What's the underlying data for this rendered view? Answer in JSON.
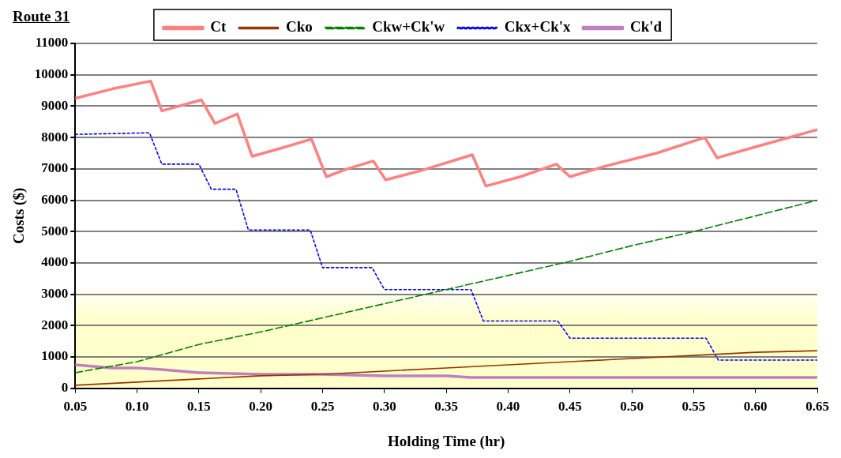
{
  "chart_data": {
    "type": "line",
    "title": "Route 31",
    "xlabel": "Holding Time (hr)",
    "ylabel": "Costs ($)",
    "xlim": [
      0.05,
      0.65
    ],
    "xticks": [
      0.05,
      {
        "value": 0.1,
        "label": "0.10"
      },
      0.15,
      {
        "value": 0.2,
        "label": "0.20"
      },
      0.25,
      {
        "value": 0.3,
        "label": "0.30"
      },
      0.35,
      {
        "value": 0.4,
        "label": "0.40"
      },
      0.45,
      {
        "value": 0.5,
        "label": "0.50"
      },
      0.55,
      {
        "value": 0.6,
        "label": "0.60"
      },
      0.65
    ],
    "ylim": [
      0,
      11000
    ],
    "yticks": [
      0,
      1000,
      2000,
      3000,
      4000,
      5000,
      6000,
      7000,
      8000,
      9000,
      10000,
      11000
    ],
    "grid": "y",
    "legend": "top",
    "marker": "none",
    "series": [
      {
        "name": "Ct",
        "color": "#ff8080",
        "line_style": "solid",
        "x": [
          0.05,
          0.08,
          0.111,
          0.12,
          0.152,
          0.163,
          0.181,
          0.193,
          0.22,
          0.241,
          0.253,
          0.27,
          0.291,
          0.301,
          0.33,
          0.371,
          0.382,
          0.41,
          0.439,
          0.45,
          0.48,
          0.52,
          0.559,
          0.569,
          0.6,
          0.65
        ],
        "values": [
          9250,
          9550,
          9800,
          8850,
          9200,
          8450,
          8750,
          7400,
          7700,
          7950,
          6750,
          7000,
          7250,
          6650,
          6950,
          7450,
          6450,
          6750,
          7150,
          6750,
          7100,
          7500,
          8000,
          7350,
          7700,
          8250
        ]
      },
      {
        "name": "Cko",
        "color": "#993300",
        "line_style": "solid",
        "x": [
          0.05,
          0.1,
          0.15,
          0.2,
          0.25,
          0.3,
          0.35,
          0.4,
          0.45,
          0.5,
          0.55,
          0.6,
          0.65
        ],
        "values": [
          100,
          200,
          300,
          400,
          450,
          550,
          650,
          750,
          850,
          950,
          1050,
          1150,
          1200
        ]
      },
      {
        "name": "Ckw+Ck'w",
        "color": "#008000",
        "line_style": "dashed",
        "x": [
          0.05,
          0.1,
          0.15,
          0.2,
          0.25,
          0.3,
          0.35,
          0.4,
          0.45,
          0.5,
          0.55,
          0.6,
          0.65
        ],
        "values": [
          500,
          850,
          1400,
          1800,
          2250,
          2700,
          3150,
          3600,
          4050,
          4550,
          5000,
          5500,
          6000
        ]
      },
      {
        "name": "Ckx+Ck'x",
        "color": "#0000ff",
        "line_style": "dotted",
        "x": [
          0.05,
          0.11,
          0.12,
          0.15,
          0.16,
          0.18,
          0.19,
          0.24,
          0.25,
          0.29,
          0.3,
          0.37,
          0.38,
          0.44,
          0.45,
          0.56,
          0.57,
          0.65
        ],
        "values": [
          8100,
          8150,
          7150,
          7150,
          6350,
          6350,
          5050,
          5050,
          3850,
          3850,
          3150,
          3150,
          2150,
          2150,
          1600,
          1600,
          900,
          900
        ]
      },
      {
        "name": "Ck'd",
        "color": "#c080c0",
        "line_style": "solid",
        "x": [
          0.05,
          0.08,
          0.1,
          0.12,
          0.15,
          0.2,
          0.25,
          0.3,
          0.35,
          0.37,
          0.65
        ],
        "values": [
          750,
          650,
          650,
          600,
          500,
          450,
          450,
          400,
          400,
          350,
          350
        ]
      }
    ]
  }
}
